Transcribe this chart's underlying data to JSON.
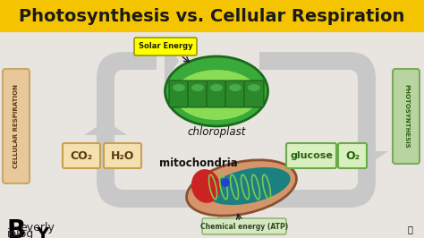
{
  "title": "Photosynthesis vs. Cellular Respiration",
  "title_bg": "#F5C400",
  "title_color": "#1a1a1a",
  "bg_color": "#e8e5e0",
  "solar_energy_label": "Solar Energy",
  "solar_energy_bg": "#FFFF00",
  "chloroplast_label": "chloroplast",
  "mitochondria_label": "mitochondria",
  "chemical_energy_label": "Chemical energy (ATP)",
  "chemical_energy_bg": "#d4e8c2",
  "co2_label": "CO₂",
  "h2o_label": "H₂O",
  "glucose_label": "glucose",
  "o2_label": "O₂",
  "cellular_respiration_label": "CELLULAR RESPIRATION",
  "cellular_resp_bg": "#e8c89a",
  "photosynthesis_label": "PHOTOSYNTHESIS",
  "photosynthesis_bg": "#b8d4a0",
  "arrow_color": "#c8c8c8",
  "arrow_outline": "#aaaaaa"
}
